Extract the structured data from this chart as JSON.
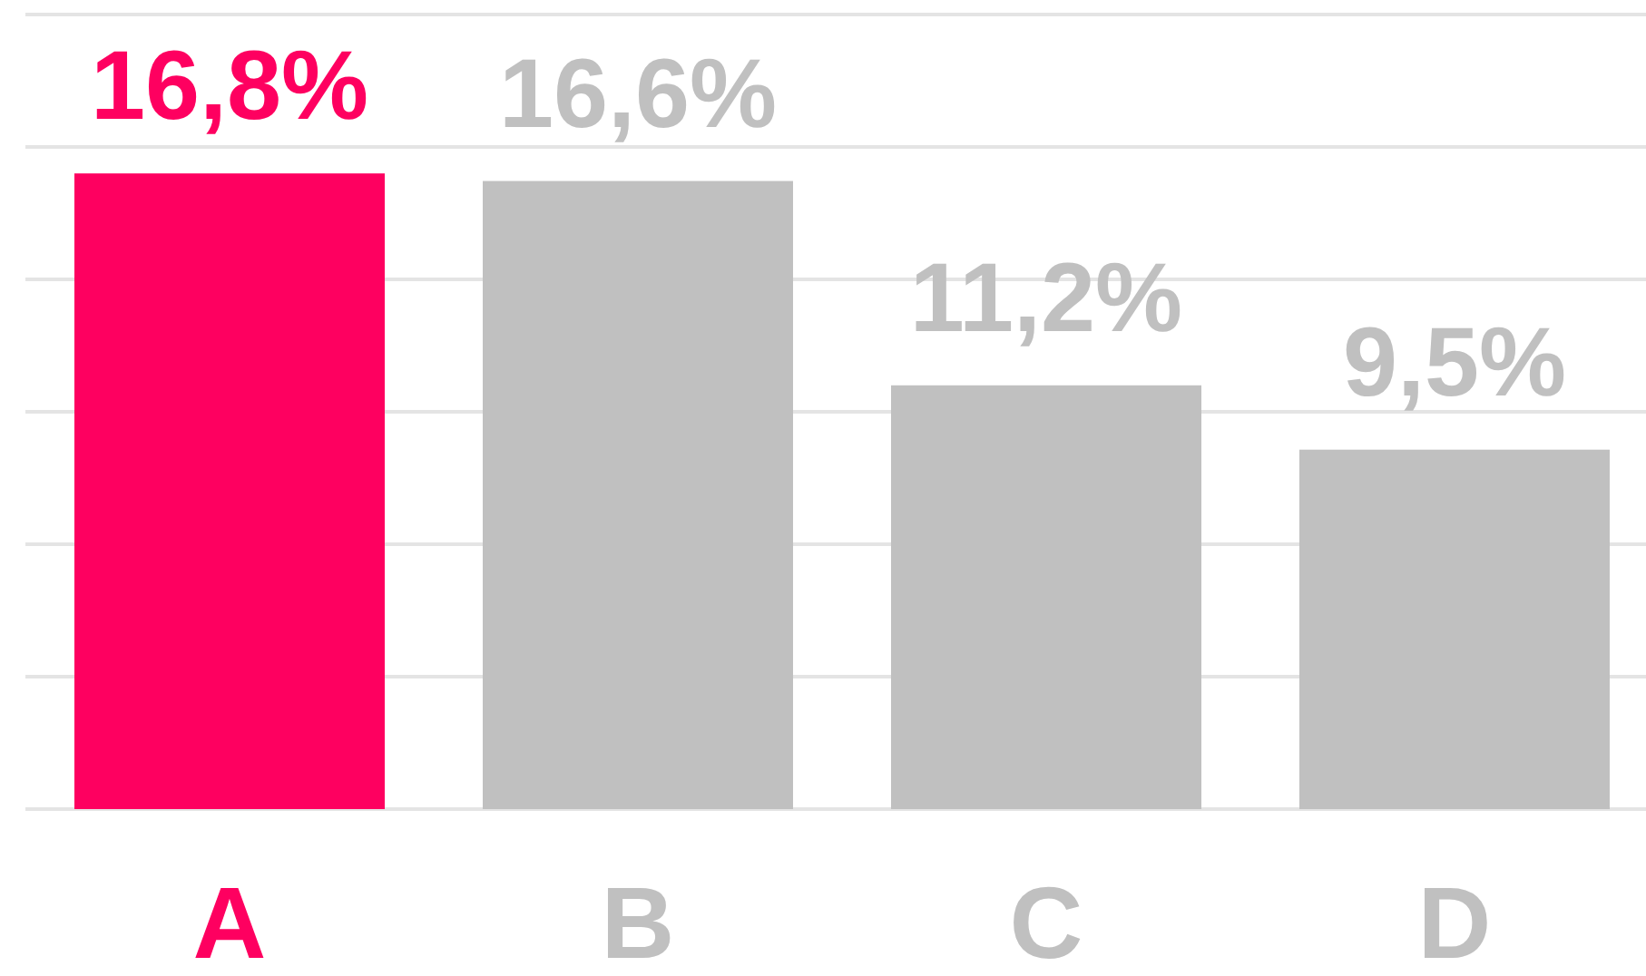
{
  "chart_data": {
    "type": "bar",
    "categories": [
      "A",
      "B",
      "C",
      "D"
    ],
    "values": [
      16.8,
      16.6,
      11.2,
      9.5
    ],
    "colors": [
      "#fe0060",
      "#c0c0c0",
      "#c0c0c0",
      "#c0c0c0"
    ],
    "value_labels": [
      "16,8%",
      "16,6%",
      "11,2%",
      "9,5%"
    ],
    "ylim": [
      0,
      21
    ],
    "yticks": [
      {
        "value": 0,
        "label": null
      },
      {
        "value": 3.5,
        "label": null
      },
      {
        "value": 7,
        "label": null
      },
      {
        "value": 10.5,
        "label": null
      },
      {
        "value": 14,
        "label": null
      },
      {
        "value": 17.5,
        "label": null
      },
      {
        "value": 21,
        "label": null
      }
    ],
    "grid": "y",
    "tick_labels": "x"
  }
}
